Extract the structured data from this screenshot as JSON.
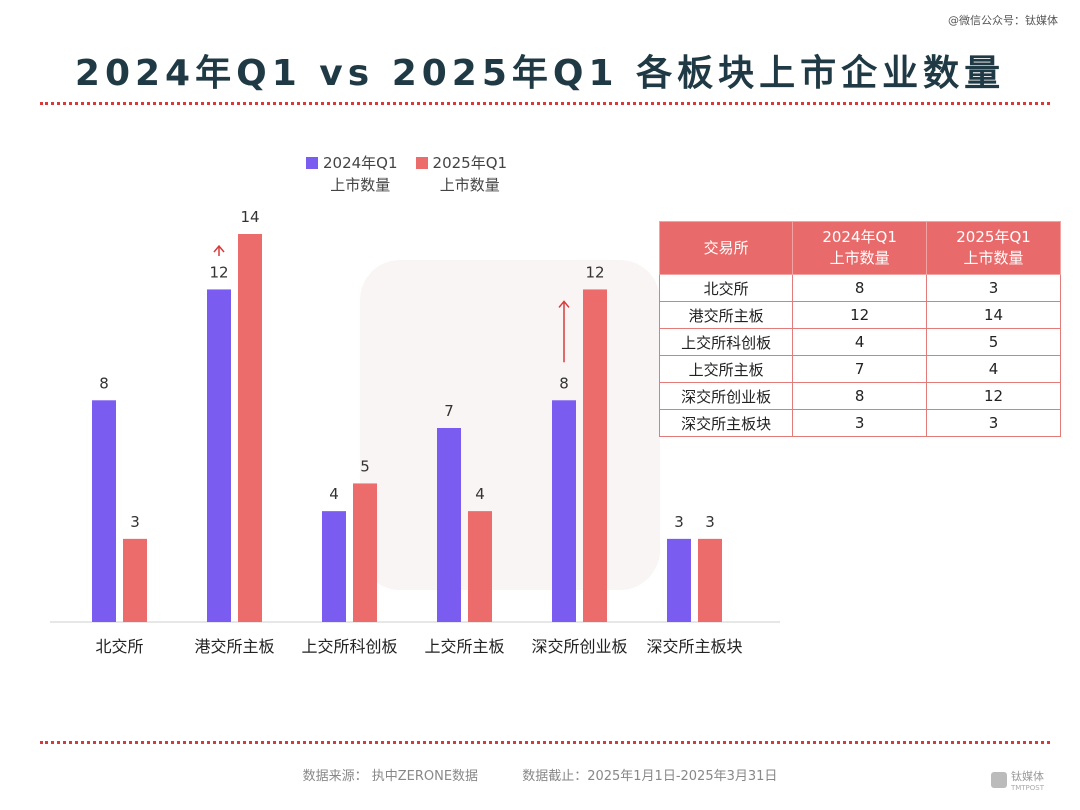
{
  "watermark": "@微信公众号：钛媒体",
  "title": "2024年Q1 vs 2025年Q1 各板块上市企业数量",
  "colors": {
    "series1": "#7b5cf0",
    "series2": "#ec6b6b",
    "accent": "#d83a3a"
  },
  "chart_data": {
    "type": "bar",
    "categories": [
      "北交所",
      "港交所主板",
      "上交所科创板",
      "上交所主板",
      "深交所创业板",
      "深交所主板块"
    ],
    "series": [
      {
        "name": "2024年Q1\n上市数量",
        "values": [
          8,
          12,
          4,
          7,
          8,
          3
        ]
      },
      {
        "name": "2025年Q1\n上市数量",
        "values": [
          3,
          14,
          5,
          4,
          12,
          3
        ]
      }
    ],
    "ylim": [
      0,
      14
    ],
    "legend": "top",
    "up_arrows": [
      "港交所主板",
      "深交所创业板"
    ]
  },
  "table": {
    "headers": [
      "交易所",
      "2024年Q1\n上市数量",
      "2025年Q1\n上市数量"
    ],
    "rows": [
      [
        "北交所",
        "8",
        "3"
      ],
      [
        "港交所主板",
        "12",
        "14"
      ],
      [
        "上交所科创板",
        "4",
        "5"
      ],
      [
        "上交所主板",
        "7",
        "4"
      ],
      [
        "深交所创业板",
        "8",
        "12"
      ],
      [
        "深交所主板块",
        "3",
        "3"
      ]
    ]
  },
  "footer": {
    "source": "数据来源：  执中ZERONE数据",
    "cutoff": "数据截止：2025年1月1日-2025年3月31日"
  },
  "logo": {
    "text": "钛媒体",
    "subtext": "TMTPOST"
  }
}
